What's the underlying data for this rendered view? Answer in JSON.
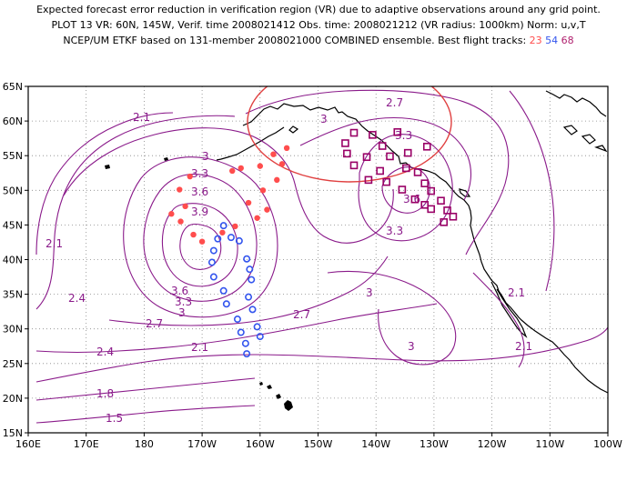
{
  "title": {
    "line1": "Expected forecast error reduction in verification region (VR) due to adaptive observations around any grid point.",
    "line2": "PLOT 13 VR: 60N, 145W, Verif. time 2008021412 Obs. time: 2008021212 (VR radius: 1000km) Norm: u,v,T",
    "line3_prefix": "NCEP/UM ETKF based on 131-member 2008021000 COMBINED ensemble.  Best flight tracks: ",
    "track_23": "23",
    "track_54": "54",
    "track_68": "68"
  },
  "colors": {
    "contour": "#8a1a8a",
    "vr_circle": "#e04040",
    "track_23": "#ff4d4d",
    "track_54": "#3355ee",
    "track_68": "#990066",
    "coast": "#000000"
  },
  "axes": {
    "lon_labels": [
      "160E",
      "170E",
      "180",
      "170W",
      "160W",
      "150W",
      "140W",
      "130W",
      "120W",
      "110W",
      "100W"
    ],
    "lat_labels": [
      "65N",
      "60N",
      "55N",
      "50N",
      "45N",
      "40N",
      "35N",
      "30N",
      "25N",
      "20N",
      "15N"
    ]
  },
  "contour_labels": [
    "2.1",
    "3",
    "3.3",
    "3.6",
    "3.9",
    "2.1",
    "2.4",
    "3.6",
    "3.3",
    "3",
    "2.7",
    "2.4",
    "2.1",
    "1.8",
    "1.5",
    "2.7",
    "3",
    "3.3",
    "3.3",
    "3.6",
    "3",
    "2.7",
    "3",
    "2.1",
    "2.1"
  ],
  "track_23_points": [
    [
      -172.1,
      52.0
    ],
    [
      -164.8,
      52.8
    ],
    [
      -163.3,
      53.2
    ],
    [
      -160.0,
      53.5
    ],
    [
      -157.7,
      55.2
    ],
    [
      -155.4,
      56.1
    ],
    [
      -157.1,
      51.5
    ],
    [
      -159.5,
      50.0
    ],
    [
      -162.0,
      48.2
    ],
    [
      -158.8,
      47.2
    ],
    [
      -172.9,
      47.7
    ],
    [
      -175.3,
      46.6
    ],
    [
      -173.7,
      45.5
    ],
    [
      -171.5,
      43.6
    ],
    [
      -164.3,
      44.8
    ],
    [
      -170.0,
      42.6
    ],
    [
      -166.5,
      43.9
    ],
    [
      -160.5,
      46.0
    ],
    [
      -173.9,
      50.1
    ],
    [
      -156.2,
      53.8
    ]
  ],
  "track_54_points": [
    [
      -166.3,
      44.9
    ],
    [
      -165.0,
      43.2
    ],
    [
      -163.6,
      42.7
    ],
    [
      -167.3,
      43.0
    ],
    [
      -168.0,
      41.3
    ],
    [
      -168.3,
      39.6
    ],
    [
      -162.3,
      40.1
    ],
    [
      -161.8,
      38.6
    ],
    [
      -168.0,
      37.5
    ],
    [
      -161.5,
      37.1
    ],
    [
      -166.3,
      35.5
    ],
    [
      -162.0,
      34.6
    ],
    [
      -165.8,
      33.6
    ],
    [
      -161.3,
      32.8
    ],
    [
      -163.9,
      31.4
    ],
    [
      -160.5,
      30.3
    ],
    [
      -163.3,
      29.5
    ],
    [
      -160.0,
      28.9
    ],
    [
      -162.5,
      27.9
    ],
    [
      -162.3,
      26.4
    ]
  ],
  "track_68_points": [
    [
      -143.8,
      58.3
    ],
    [
      -140.6,
      58.0
    ],
    [
      -136.3,
      58.4
    ],
    [
      -145.3,
      56.8
    ],
    [
      -138.9,
      56.4
    ],
    [
      -134.5,
      55.4
    ],
    [
      -145.0,
      55.3
    ],
    [
      -141.6,
      54.8
    ],
    [
      -137.6,
      54.9
    ],
    [
      -131.2,
      56.3
    ],
    [
      -143.8,
      53.6
    ],
    [
      -139.3,
      52.8
    ],
    [
      -134.8,
      53.2
    ],
    [
      -132.8,
      52.6
    ],
    [
      -141.3,
      51.5
    ],
    [
      -138.2,
      51.2
    ],
    [
      -131.6,
      51.0
    ],
    [
      -135.5,
      50.1
    ],
    [
      -130.5,
      49.9
    ],
    [
      -133.3,
      48.7
    ],
    [
      -131.6,
      47.9
    ],
    [
      -128.8,
      48.5
    ],
    [
      -130.5,
      47.3
    ],
    [
      -127.7,
      47.1
    ],
    [
      -128.3,
      45.4
    ],
    [
      -126.7,
      46.2
    ]
  ]
}
